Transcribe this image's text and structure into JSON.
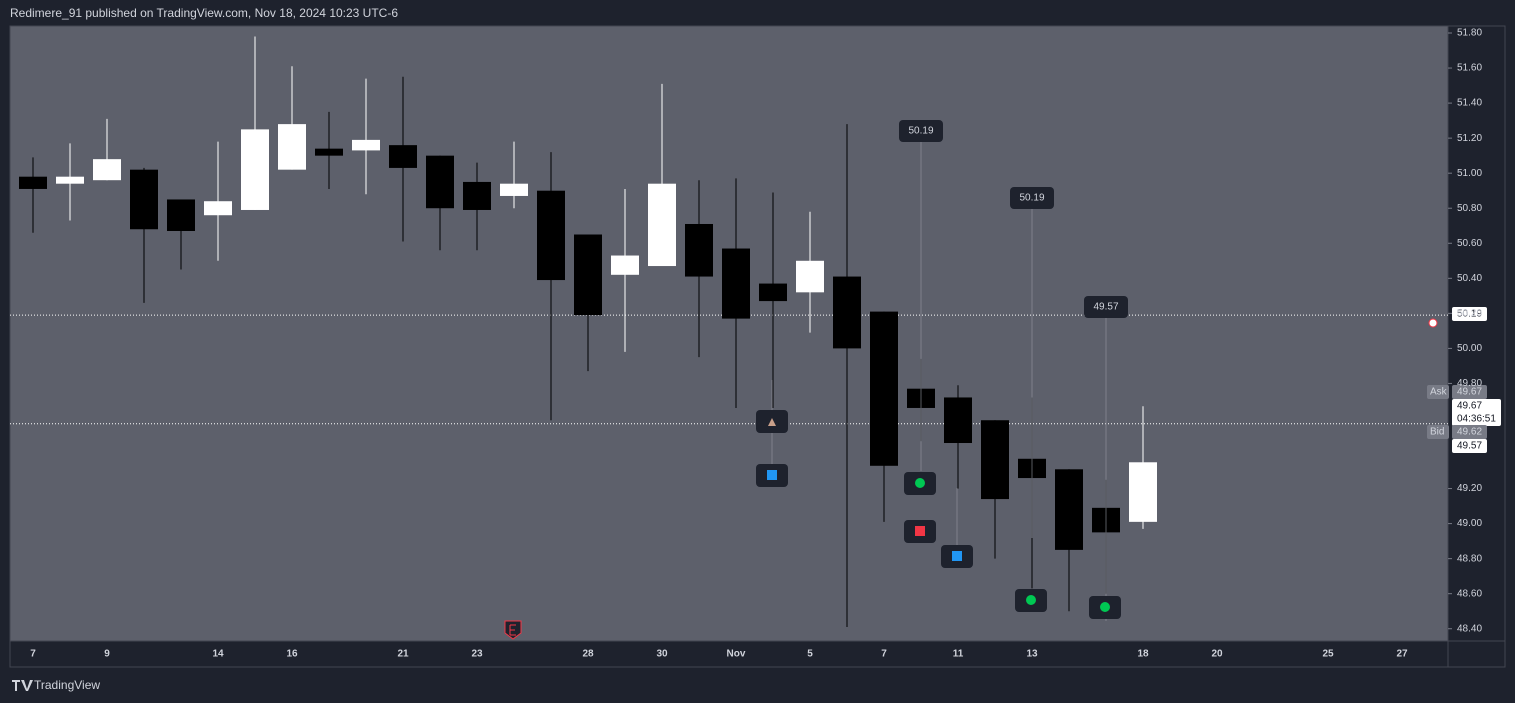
{
  "header": {
    "title": "Redimere_91 published on TradingView.com, Nov 18, 2024 10:23 UTC-6"
  },
  "chart_data": {
    "type": "candlestick",
    "categories": [
      "7",
      null,
      "9",
      null,
      null,
      "14",
      null,
      "16",
      null,
      null,
      "21",
      null,
      "23",
      null,
      null,
      "28",
      null,
      "30",
      null,
      "Nov",
      null,
      "5",
      null,
      "7",
      null,
      "11",
      null,
      "13",
      null,
      null,
      "18",
      null,
      "20",
      null,
      null,
      "25",
      null,
      "27"
    ],
    "open": [
      50.98,
      50.94,
      50.96,
      51.02,
      50.85,
      50.76,
      50.79,
      51.02,
      51.14,
      51.13,
      51.16,
      51.1,
      50.95,
      50.87,
      50.9,
      50.65,
      50.42,
      50.47,
      50.71,
      50.57,
      50.37,
      50.32,
      50.41,
      50.21,
      49.77,
      49.72,
      49.59,
      49.37,
      49.31,
      49.09,
      49.01,
      null,
      null,
      null,
      null,
      null,
      null,
      null
    ],
    "high": [
      51.09,
      51.17,
      51.31,
      51.03,
      50.85,
      51.18,
      51.78,
      51.61,
      51.35,
      51.54,
      51.55,
      51.1,
      51.06,
      51.18,
      51.12,
      50.65,
      50.91,
      51.51,
      50.96,
      50.97,
      50.89,
      50.78,
      51.28,
      50.21,
      49.94,
      49.79,
      49.59,
      49.72,
      49.31,
      49.25,
      49.67,
      null,
      null,
      null,
      null,
      null,
      null,
      null
    ],
    "low": [
      50.66,
      50.73,
      50.96,
      50.26,
      50.45,
      50.5,
      50.79,
      51.02,
      50.91,
      50.88,
      50.61,
      50.56,
      50.56,
      50.8,
      49.59,
      49.87,
      49.98,
      50.47,
      49.95,
      49.66,
      49.66,
      50.09,
      48.41,
      49.01,
      49.47,
      49.2,
      48.8,
      48.63,
      48.5,
      48.6,
      48.97,
      null,
      null,
      null,
      null,
      null,
      null,
      null
    ],
    "close": [
      50.91,
      50.98,
      51.08,
      50.68,
      50.67,
      50.84,
      51.25,
      51.28,
      51.1,
      51.19,
      51.03,
      50.8,
      50.79,
      50.94,
      50.39,
      50.19,
      50.53,
      50.94,
      50.41,
      50.17,
      50.27,
      50.5,
      50.0,
      49.33,
      49.66,
      49.46,
      49.14,
      49.26,
      48.85,
      48.95,
      49.35,
      null,
      null,
      null,
      null,
      null,
      null,
      null
    ],
    "up_color": "#ffffff",
    "down_color": "#000000",
    "ylim": [
      48.33,
      51.84
    ],
    "yticks": [
      {
        "value": 48.4,
        "label": "48.40"
      },
      {
        "value": 48.6,
        "label": "48.60"
      },
      {
        "value": 48.8,
        "label": "48.80"
      },
      {
        "value": 49,
        "label": "49.00"
      },
      {
        "value": 49.2,
        "label": "49.20"
      },
      {
        "value": 49.8,
        "label": "49.80"
      },
      {
        "value": 50,
        "label": "50.00"
      },
      {
        "value": 50.2,
        "label": "50.20"
      },
      {
        "value": 50.4,
        "label": "50.40"
      },
      {
        "value": 50.6,
        "label": "50.60"
      },
      {
        "value": 50.8,
        "label": "50.80"
      },
      {
        "value": 51,
        "label": "51.00"
      },
      {
        "value": 51.2,
        "label": "51.20"
      },
      {
        "value": 51.4,
        "label": "51.40"
      },
      {
        "value": 51.6,
        "label": "51.60"
      },
      {
        "value": 51.8,
        "label": "51.80"
      }
    ],
    "price_lines": [
      50.19,
      49.57
    ],
    "callouts": [
      {
        "at": 24,
        "value": 50.19
      },
      {
        "at": 27,
        "value": 50.19
      },
      {
        "at": 29,
        "value": 49.57
      }
    ],
    "price_tags": {
      "line": 50.19,
      "ask_label": "Ask",
      "ask": 49.67,
      "last": 49.67,
      "countdown": "04:36:51",
      "bid_label": "Bid",
      "bid": 49.62,
      "close": 49.57
    }
  },
  "footer": {
    "brand": "TradingView"
  }
}
